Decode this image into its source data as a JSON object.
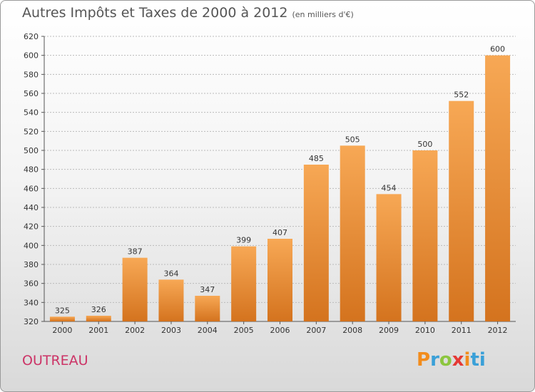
{
  "title": "Autres Impôts et Taxes de 2000 à 2012",
  "subtitle": "(en milliers d'€)",
  "commune": "OUTREAU",
  "brand": {
    "letters": [
      "P",
      "r",
      "o",
      "x",
      "i",
      "ti"
    ]
  },
  "colors": {
    "bar_light": "#f7a855",
    "bar_dark": "#d4731e",
    "commune": "#cc3366",
    "grid": "#bbbbbb"
  },
  "chart_data": {
    "type": "bar",
    "categories": [
      "2000",
      "2001",
      "2002",
      "2003",
      "2004",
      "2005",
      "2006",
      "2007",
      "2008",
      "2009",
      "2010",
      "2011",
      "2012"
    ],
    "values": [
      325,
      326,
      387,
      364,
      347,
      399,
      407,
      485,
      505,
      454,
      500,
      552,
      600
    ],
    "ylim": [
      320,
      620
    ],
    "yticks": [
      320,
      340,
      360,
      380,
      400,
      420,
      440,
      460,
      480,
      500,
      520,
      540,
      560,
      580,
      600,
      620
    ],
    "grid": true,
    "xlabel": "",
    "ylabel": ""
  }
}
